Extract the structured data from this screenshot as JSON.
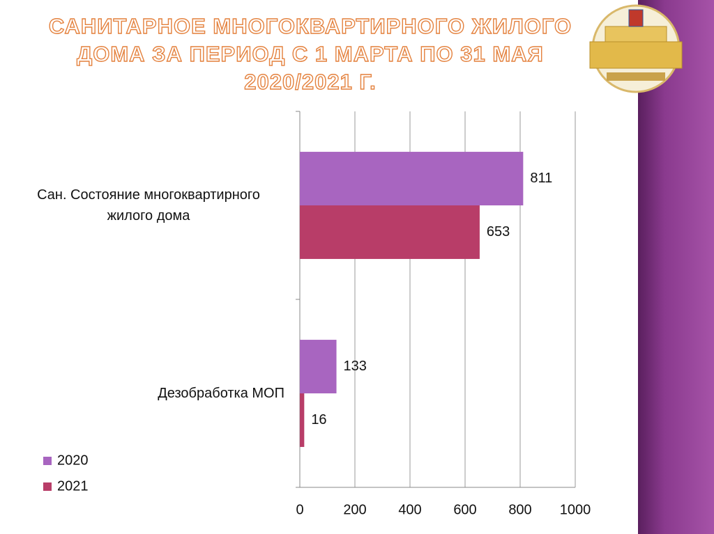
{
  "chart_data": {
    "type": "bar",
    "orientation": "horizontal",
    "title": "САНИТАРНОЕ МНОГОКВАРТИРНОГО ЖИЛОГО ДОМА ЗА ПЕРИОД С 1 МАРТА ПО 31 МАЯ 2020/2021 Г.",
    "categories": [
      "Сан. Состояние многоквартирного жилого дома",
      "Дезобработка МОП"
    ],
    "series": [
      {
        "name": "2020",
        "color": "#a865c0",
        "values": [
          811,
          133
        ]
      },
      {
        "name": "2021",
        "color": "#b83d68",
        "values": [
          653,
          16
        ]
      }
    ],
    "xlim": [
      0,
      1000
    ],
    "xticks": [
      0,
      200,
      400,
      600,
      800,
      1000
    ],
    "grid": true,
    "legend": "bottom-left"
  }
}
